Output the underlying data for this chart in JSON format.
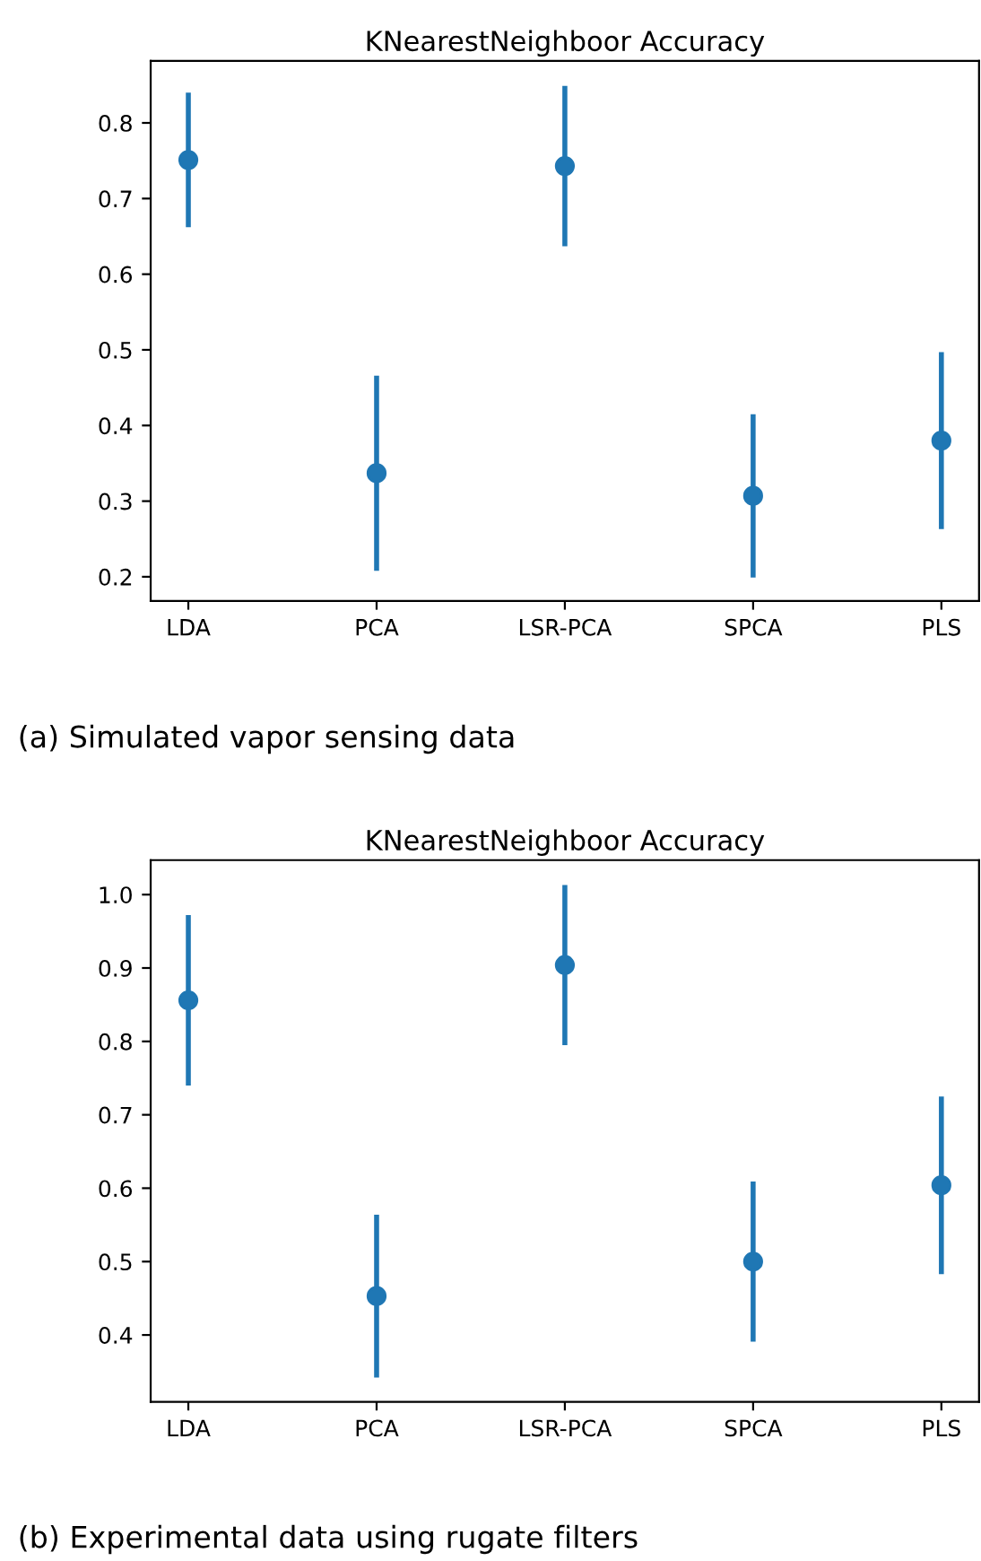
{
  "chart_data": [
    {
      "type": "scatter",
      "title": "KNearestNeighboor Accuracy",
      "categories": [
        "LDA",
        "PCA",
        "LSR-PCA",
        "SPCA",
        "PLS"
      ],
      "series": [
        {
          "color": "#1f77b4",
          "values": [
            0.751,
            0.337,
            0.743,
            0.307,
            0.38
          ],
          "errors": [
            0.089,
            0.129,
            0.106,
            0.108,
            0.117
          ]
        }
      ],
      "ylim": [
        0.168,
        0.882
      ],
      "yticks": [
        0.2,
        0.3,
        0.4,
        0.5,
        0.6,
        0.7,
        0.8
      ],
      "marker": "circle",
      "grid": false,
      "legend": false,
      "annotations": [
        "(a) Simulated vapor sensing data"
      ]
    },
    {
      "type": "scatter",
      "title": "KNearestNeighboor Accuracy",
      "categories": [
        "LDA",
        "PCA",
        "LSR-PCA",
        "SPCA",
        "PLS"
      ],
      "series": [
        {
          "color": "#1f77b4",
          "values": [
            0.856,
            0.453,
            0.904,
            0.5,
            0.604
          ],
          "errors": [
            0.116,
            0.111,
            0.109,
            0.109,
            0.121
          ]
        }
      ],
      "ylim": [
        0.309,
        1.047
      ],
      "yticks": [
        0.4,
        0.5,
        0.6,
        0.7,
        0.8,
        0.9,
        {
          "value": 1,
          "label": "1.0"
        }
      ],
      "marker": "circle",
      "grid": false,
      "legend": false,
      "annotations": [
        "(b) Experimental data using rugate filters"
      ]
    }
  ]
}
